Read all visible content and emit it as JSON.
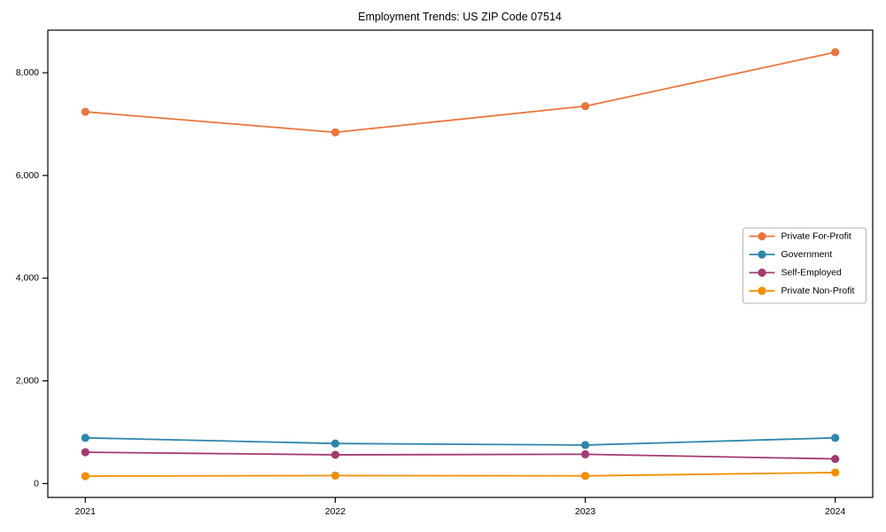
{
  "chart_data": {
    "type": "line",
    "title": "Employment Trends: US ZIP Code 07514",
    "xlabel": "",
    "ylabel": "",
    "categories": [
      2021,
      2022,
      2023,
      2024
    ],
    "x_tick_labels": [
      "2021",
      "2022",
      "2023",
      "2024"
    ],
    "y_ticks": [
      0,
      2000,
      4000,
      6000,
      8000
    ],
    "y_tick_labels": [
      "0",
      "2,000",
      "4,000",
      "6,000",
      "8,000"
    ],
    "xlim": [
      2020.85,
      2024.15
    ],
    "ylim": [
      -270,
      8830
    ],
    "grid": false,
    "legend_position": "center-right",
    "marker": "circle",
    "axis_color": "#000000",
    "legend_border_color": "#b3b3b3",
    "background_color": "#ffffff",
    "series": [
      {
        "name": "Private For-Profit",
        "color": "#E8763C",
        "values": [
          7240,
          6840,
          7350,
          8400
        ]
      },
      {
        "name": "Government",
        "color": "#2E86AB",
        "values": [
          890,
          780,
          750,
          890
        ]
      },
      {
        "name": "Self-Employed",
        "color": "#A23B72",
        "values": [
          610,
          560,
          570,
          480
        ]
      },
      {
        "name": "Private Non-Profit",
        "color": "#F18F01",
        "values": [
          145,
          155,
          150,
          215
        ]
      }
    ]
  }
}
